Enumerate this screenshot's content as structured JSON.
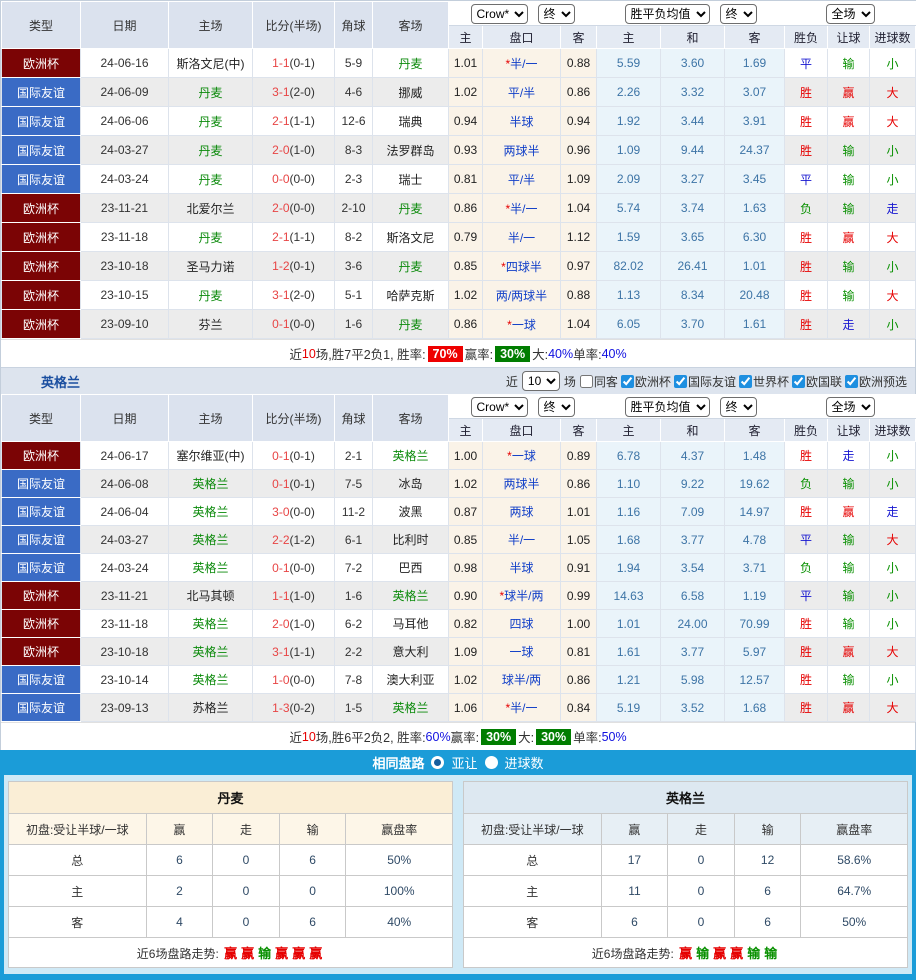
{
  "colors": {
    "cup_badge": "#7b0405",
    "friendly_badge": "#3a6bc5",
    "banner_blue": "#1b9cd8",
    "team_highlight_green": "#0b8a0b",
    "win_red": "#e60000",
    "lose_green": "#089000",
    "draw_blue": "#1515d0"
  },
  "controls": {
    "crow": "Crow*",
    "stage1": "终",
    "spf": "胜平负均值",
    "stage2": "终",
    "scope": "全场"
  },
  "headers": {
    "main": [
      "类型",
      "日期",
      "主场",
      "比分(半场)",
      "角球",
      "客场"
    ],
    "sub": [
      "主",
      "盘口",
      "客",
      "主",
      "和",
      "客",
      "胜负",
      "让球",
      "进球数"
    ]
  },
  "table1": {
    "rows": [
      {
        "type": "欧洲杯",
        "date": "24-06-16",
        "home": "斯洛文尼(中)",
        "hh": false,
        "ft": "1-1",
        "ht": "(0-1)",
        "corner": "5-9",
        "away": "丹麦",
        "ah": true,
        "o1": "1.01",
        "star": true,
        "pan": "半/一",
        "o2": "0.88",
        "w": "5.59",
        "d": "3.60",
        "l": "1.69",
        "res": [
          "平",
          "b"
        ],
        "let": [
          "输",
          "g"
        ],
        "goal": [
          "小",
          "g"
        ]
      },
      {
        "type": "国际友谊",
        "date": "24-06-09",
        "home": "丹麦",
        "hh": true,
        "ft": "3-1",
        "ht": "(2-0)",
        "corner": "4-6",
        "away": "挪威",
        "ah": false,
        "o1": "1.02",
        "star": false,
        "pan": "平/半",
        "o2": "0.86",
        "w": "2.26",
        "d": "3.32",
        "l": "3.07",
        "res": [
          "胜",
          "r"
        ],
        "let": [
          "赢",
          "r"
        ],
        "goal": [
          "大",
          "r"
        ]
      },
      {
        "type": "国际友谊",
        "date": "24-06-06",
        "home": "丹麦",
        "hh": true,
        "ft": "2-1",
        "ht": "(1-1)",
        "corner": "12-6",
        "away": "瑞典",
        "ah": false,
        "o1": "0.94",
        "star": false,
        "pan": "半球",
        "o2": "0.94",
        "w": "1.92",
        "d": "3.44",
        "l": "3.91",
        "res": [
          "胜",
          "r"
        ],
        "let": [
          "赢",
          "r"
        ],
        "goal": [
          "大",
          "r"
        ]
      },
      {
        "type": "国际友谊",
        "date": "24-03-27",
        "home": "丹麦",
        "hh": true,
        "ft": "2-0",
        "ht": "(1-0)",
        "corner": "8-3",
        "away": "法罗群岛",
        "ah": false,
        "o1": "0.93",
        "star": false,
        "pan": "两球半",
        "o2": "0.96",
        "w": "1.09",
        "d": "9.44",
        "l": "24.37",
        "res": [
          "胜",
          "r"
        ],
        "let": [
          "输",
          "g"
        ],
        "goal": [
          "小",
          "g"
        ]
      },
      {
        "type": "国际友谊",
        "date": "24-03-24",
        "home": "丹麦",
        "hh": true,
        "ft": "0-0",
        "ht": "(0-0)",
        "corner": "2-3",
        "away": "瑞士",
        "ah": false,
        "o1": "0.81",
        "star": false,
        "pan": "平/半",
        "o2": "1.09",
        "w": "2.09",
        "d": "3.27",
        "l": "3.45",
        "res": [
          "平",
          "b"
        ],
        "let": [
          "输",
          "g"
        ],
        "goal": [
          "小",
          "g"
        ]
      },
      {
        "type": "欧洲杯",
        "date": "23-11-21",
        "home": "北爱尔兰",
        "hh": false,
        "ft": "2-0",
        "ht": "(0-0)",
        "corner": "2-10",
        "away": "丹麦",
        "ah": true,
        "o1": "0.86",
        "star": true,
        "pan": "半/一",
        "o2": "1.04",
        "w": "5.74",
        "d": "3.74",
        "l": "1.63",
        "res": [
          "负",
          "g"
        ],
        "let": [
          "输",
          "g"
        ],
        "goal": [
          "走",
          "b"
        ]
      },
      {
        "type": "欧洲杯",
        "date": "23-11-18",
        "home": "丹麦",
        "hh": true,
        "ft": "2-1",
        "ht": "(1-1)",
        "corner": "8-2",
        "away": "斯洛文尼",
        "ah": false,
        "o1": "0.79",
        "star": false,
        "pan": "半/一",
        "o2": "1.12",
        "w": "1.59",
        "d": "3.65",
        "l": "6.30",
        "res": [
          "胜",
          "r"
        ],
        "let": [
          "赢",
          "r"
        ],
        "goal": [
          "大",
          "r"
        ]
      },
      {
        "type": "欧洲杯",
        "date": "23-10-18",
        "home": "圣马力诺",
        "hh": false,
        "ft": "1-2",
        "ht": "(0-1)",
        "corner": "3-6",
        "away": "丹麦",
        "ah": true,
        "o1": "0.85",
        "star": true,
        "pan": "四球半",
        "o2": "0.97",
        "w": "82.02",
        "d": "26.41",
        "l": "1.01",
        "res": [
          "胜",
          "r"
        ],
        "let": [
          "输",
          "g"
        ],
        "goal": [
          "小",
          "g"
        ]
      },
      {
        "type": "欧洲杯",
        "date": "23-10-15",
        "home": "丹麦",
        "hh": true,
        "ft": "3-1",
        "ht": "(2-0)",
        "corner": "5-1",
        "away": "哈萨克斯",
        "ah": false,
        "o1": "1.02",
        "star": false,
        "pan": "两/两球半",
        "o2": "0.88",
        "w": "1.13",
        "d": "8.34",
        "l": "20.48",
        "res": [
          "胜",
          "r"
        ],
        "let": [
          "输",
          "g"
        ],
        "goal": [
          "大",
          "r"
        ]
      },
      {
        "type": "欧洲杯",
        "date": "23-09-10",
        "home": "芬兰",
        "hh": false,
        "ft": "0-1",
        "ht": "(0-0)",
        "corner": "1-6",
        "away": "丹麦",
        "ah": true,
        "o1": "0.86",
        "star": true,
        "pan": "一球",
        "o2": "1.04",
        "w": "6.05",
        "d": "3.70",
        "l": "1.61",
        "res": [
          "胜",
          "r"
        ],
        "let": [
          "走",
          "b"
        ],
        "goal": [
          "小",
          "g"
        ]
      }
    ],
    "summary": [
      {
        "t": "近",
        "s": "k"
      },
      {
        "t": "10",
        "s": "r"
      },
      {
        "t": "场,胜7平2负1, 胜率:",
        "s": "k"
      },
      {
        "t": "70%",
        "s": "wr"
      },
      {
        "t": " 赢率:",
        "s": "k"
      },
      {
        "t": "30%",
        "s": "wg"
      },
      {
        "t": " 大:",
        "s": "k"
      },
      {
        "t": "40%",
        "s": "b"
      },
      {
        "t": " 单率:",
        "s": "k"
      },
      {
        "t": "40%",
        "s": "b"
      }
    ]
  },
  "team_bar": {
    "team": "英格兰",
    "near_label": "近",
    "count": "10",
    "games_label": "场",
    "options": [
      {
        "label": "同客",
        "checked": false
      },
      {
        "label": "欧洲杯",
        "checked": true
      },
      {
        "label": "国际友谊",
        "checked": true
      },
      {
        "label": "世界杯",
        "checked": true
      },
      {
        "label": "欧国联",
        "checked": true
      },
      {
        "label": "欧洲预选",
        "checked": true
      }
    ]
  },
  "table2": {
    "rows": [
      {
        "type": "欧洲杯",
        "date": "24-06-17",
        "home": "塞尔维亚(中)",
        "hh": false,
        "ft": "0-1",
        "ht": "(0-1)",
        "corner": "2-1",
        "away": "英格兰",
        "ah": true,
        "o1": "1.00",
        "star": true,
        "pan": "一球",
        "o2": "0.89",
        "w": "6.78",
        "d": "4.37",
        "l": "1.48",
        "res": [
          "胜",
          "r"
        ],
        "let": [
          "走",
          "b"
        ],
        "goal": [
          "小",
          "g"
        ]
      },
      {
        "type": "国际友谊",
        "date": "24-06-08",
        "home": "英格兰",
        "hh": true,
        "ft": "0-1",
        "ht": "(0-1)",
        "corner": "7-5",
        "away": "冰岛",
        "ah": false,
        "o1": "1.02",
        "star": false,
        "pan": "两球半",
        "o2": "0.86",
        "w": "1.10",
        "d": "9.22",
        "l": "19.62",
        "res": [
          "负",
          "g"
        ],
        "let": [
          "输",
          "g"
        ],
        "goal": [
          "小",
          "g"
        ]
      },
      {
        "type": "国际友谊",
        "date": "24-06-04",
        "home": "英格兰",
        "hh": true,
        "ft": "3-0",
        "ht": "(0-0)",
        "corner": "11-2",
        "away": "波黑",
        "ah": false,
        "o1": "0.87",
        "star": false,
        "pan": "两球",
        "o2": "1.01",
        "w": "1.16",
        "d": "7.09",
        "l": "14.97",
        "res": [
          "胜",
          "r"
        ],
        "let": [
          "赢",
          "r"
        ],
        "goal": [
          "走",
          "b"
        ]
      },
      {
        "type": "国际友谊",
        "date": "24-03-27",
        "home": "英格兰",
        "hh": true,
        "ft": "2-2",
        "ht": "(1-2)",
        "corner": "6-1",
        "away": "比利时",
        "ah": false,
        "o1": "0.85",
        "star": false,
        "pan": "半/一",
        "o2": "1.05",
        "w": "1.68",
        "d": "3.77",
        "l": "4.78",
        "res": [
          "平",
          "b"
        ],
        "let": [
          "输",
          "g"
        ],
        "goal": [
          "大",
          "r"
        ]
      },
      {
        "type": "国际友谊",
        "date": "24-03-24",
        "home": "英格兰",
        "hh": true,
        "ft": "0-1",
        "ht": "(0-0)",
        "corner": "7-2",
        "away": "巴西",
        "ah": false,
        "o1": "0.98",
        "star": false,
        "pan": "半球",
        "o2": "0.91",
        "w": "1.94",
        "d": "3.54",
        "l": "3.71",
        "res": [
          "负",
          "g"
        ],
        "let": [
          "输",
          "g"
        ],
        "goal": [
          "小",
          "g"
        ]
      },
      {
        "type": "欧洲杯",
        "date": "23-11-21",
        "home": "北马其顿",
        "hh": false,
        "ft": "1-1",
        "ht": "(1-0)",
        "corner": "1-6",
        "away": "英格兰",
        "ah": true,
        "o1": "0.90",
        "star": true,
        "pan": "球半/两",
        "o2": "0.99",
        "w": "14.63",
        "d": "6.58",
        "l": "1.19",
        "res": [
          "平",
          "b"
        ],
        "let": [
          "输",
          "g"
        ],
        "goal": [
          "小",
          "g"
        ]
      },
      {
        "type": "欧洲杯",
        "date": "23-11-18",
        "home": "英格兰",
        "hh": true,
        "ft": "2-0",
        "ht": "(1-0)",
        "corner": "6-2",
        "away": "马耳他",
        "ah": false,
        "o1": "0.82",
        "star": false,
        "pan": "四球",
        "o2": "1.00",
        "w": "1.01",
        "d": "24.00",
        "l": "70.99",
        "res": [
          "胜",
          "r"
        ],
        "let": [
          "输",
          "g"
        ],
        "goal": [
          "小",
          "g"
        ]
      },
      {
        "type": "欧洲杯",
        "date": "23-10-18",
        "home": "英格兰",
        "hh": true,
        "ft": "3-1",
        "ht": "(1-1)",
        "corner": "2-2",
        "away": "意大利",
        "ah": false,
        "o1": "1.09",
        "star": false,
        "pan": "一球",
        "o2": "0.81",
        "w": "1.61",
        "d": "3.77",
        "l": "5.97",
        "res": [
          "胜",
          "r"
        ],
        "let": [
          "赢",
          "r"
        ],
        "goal": [
          "大",
          "r"
        ]
      },
      {
        "type": "国际友谊",
        "date": "23-10-14",
        "home": "英格兰",
        "hh": true,
        "ft": "1-0",
        "ht": "(0-0)",
        "corner": "7-8",
        "away": "澳大利亚",
        "ah": false,
        "o1": "1.02",
        "star": false,
        "pan": "球半/两",
        "o2": "0.86",
        "w": "1.21",
        "d": "5.98",
        "l": "12.57",
        "res": [
          "胜",
          "r"
        ],
        "let": [
          "输",
          "g"
        ],
        "goal": [
          "小",
          "g"
        ]
      },
      {
        "type": "国际友谊",
        "date": "23-09-13",
        "home": "苏格兰",
        "hh": false,
        "ft": "1-3",
        "ht": "(0-2)",
        "corner": "1-5",
        "away": "英格兰",
        "ah": true,
        "o1": "1.06",
        "star": true,
        "pan": "半/一",
        "o2": "0.84",
        "w": "5.19",
        "d": "3.52",
        "l": "1.68",
        "res": [
          "胜",
          "r"
        ],
        "let": [
          "赢",
          "r"
        ],
        "goal": [
          "大",
          "r"
        ]
      }
    ],
    "summary": [
      {
        "t": "近",
        "s": "k"
      },
      {
        "t": "10",
        "s": "r"
      },
      {
        "t": "场,胜6平2负2, 胜率:",
        "s": "k"
      },
      {
        "t": "60%",
        "s": "b"
      },
      {
        "t": " 赢率:",
        "s": "k"
      },
      {
        "t": "30%",
        "s": "wg"
      },
      {
        "t": " 大:",
        "s": "k"
      },
      {
        "t": "30%",
        "s": "wg"
      },
      {
        "t": " 单率:",
        "s": "k"
      },
      {
        "t": "50%",
        "s": "b"
      }
    ]
  },
  "banner": {
    "title": "相同盘路",
    "radio1": "亚让",
    "radio2": "进球数",
    "selected": "亚让"
  },
  "bottom": {
    "left": {
      "title": "丹麦",
      "headers": [
        "初盘:受让半球/一球",
        "赢",
        "走",
        "输",
        "赢盘率"
      ],
      "rows": [
        [
          "总",
          "6",
          "0",
          "6",
          "50%"
        ],
        [
          "主",
          "2",
          "0",
          "0",
          "100%"
        ],
        [
          "客",
          "4",
          "0",
          "6",
          "40%"
        ]
      ],
      "foot_label": "近6场盘路走势:",
      "trend": [
        [
          "赢",
          "r"
        ],
        [
          "赢",
          "r"
        ],
        [
          "输",
          "g"
        ],
        [
          "赢",
          "r"
        ],
        [
          "赢",
          "r"
        ],
        [
          "赢",
          "r"
        ]
      ]
    },
    "right": {
      "title": "英格兰",
      "headers": [
        "初盘:受让半球/一球",
        "赢",
        "走",
        "输",
        "赢盘率"
      ],
      "rows": [
        [
          "总",
          "17",
          "0",
          "12",
          "58.6%"
        ],
        [
          "主",
          "11",
          "0",
          "6",
          "64.7%"
        ],
        [
          "客",
          "6",
          "0",
          "6",
          "50%"
        ]
      ],
      "foot_label": "近6场盘路走势:",
      "trend": [
        [
          "赢",
          "r"
        ],
        [
          "输",
          "g"
        ],
        [
          "赢",
          "r"
        ],
        [
          "赢",
          "r"
        ],
        [
          "输",
          "g"
        ],
        [
          "输",
          "g"
        ]
      ]
    }
  }
}
